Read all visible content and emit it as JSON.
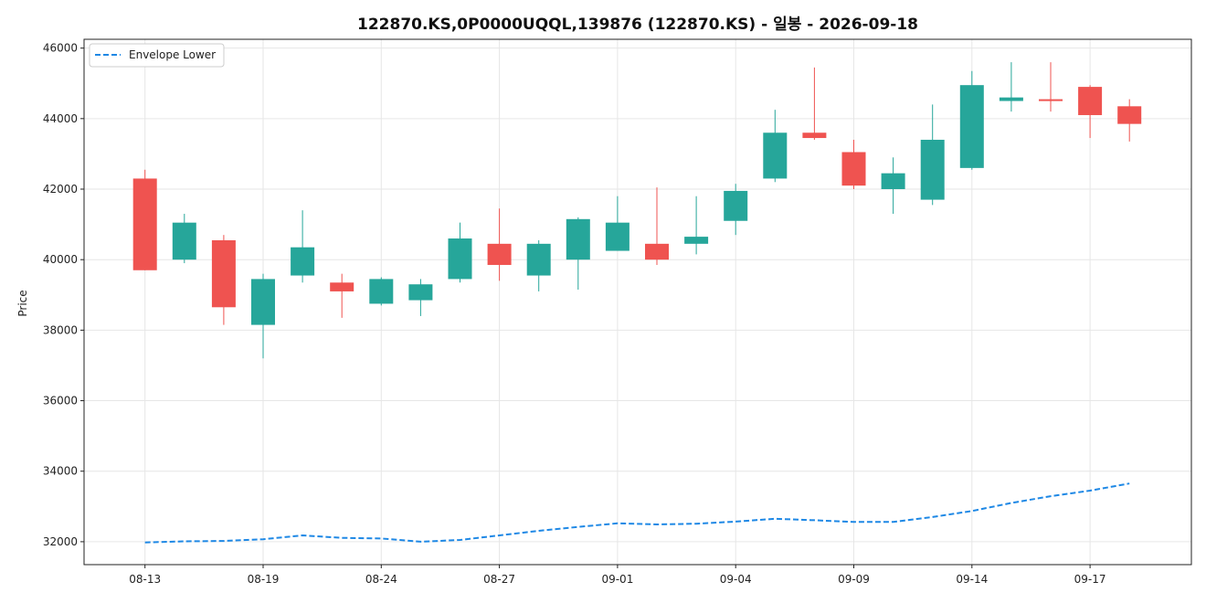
{
  "chart_data": {
    "type": "candlestick",
    "title": "122870.KS,0P0000UQQL,139876 (122870.KS) - 일봉 - 2026-09-18",
    "ylabel": "Price",
    "xlabel": "",
    "ylim": [
      31350,
      46250
    ],
    "yticks": [
      32000,
      34000,
      36000,
      38000,
      40000,
      42000,
      44000,
      46000
    ],
    "xtick_labels": [
      {
        "index": 0,
        "label": "08-13"
      },
      {
        "index": 3,
        "label": "08-19"
      },
      {
        "index": 6,
        "label": "08-24"
      },
      {
        "index": 9,
        "label": "08-27"
      },
      {
        "index": 12,
        "label": "09-01"
      },
      {
        "index": 15,
        "label": "09-04"
      },
      {
        "index": 18,
        "label": "09-09"
      },
      {
        "index": 21,
        "label": "09-14"
      },
      {
        "index": 24,
        "label": "09-17"
      }
    ],
    "grid": true,
    "legend": {
      "position": "top-left",
      "entries": [
        "Envelope Lower"
      ]
    },
    "colors": {
      "up": "#26a69a",
      "down": "#ef5350",
      "envelope": "#1e88e5"
    },
    "candles": [
      {
        "open": 42300,
        "high": 42550,
        "low": 39700,
        "close": 39700
      },
      {
        "open": 40000,
        "high": 41300,
        "low": 39900,
        "close": 41050
      },
      {
        "open": 40550,
        "high": 40700,
        "low": 38150,
        "close": 38650
      },
      {
        "open": 38150,
        "high": 39600,
        "low": 37200,
        "close": 39450
      },
      {
        "open": 39550,
        "high": 41400,
        "low": 39350,
        "close": 40350
      },
      {
        "open": 39350,
        "high": 39600,
        "low": 38350,
        "close": 39100
      },
      {
        "open": 38750,
        "high": 39500,
        "low": 38700,
        "close": 39450
      },
      {
        "open": 38850,
        "high": 39450,
        "low": 38400,
        "close": 39300
      },
      {
        "open": 39450,
        "high": 41050,
        "low": 39350,
        "close": 40600
      },
      {
        "open": 40450,
        "high": 41450,
        "low": 39400,
        "close": 39850
      },
      {
        "open": 39550,
        "high": 40550,
        "low": 39100,
        "close": 40450
      },
      {
        "open": 40000,
        "high": 41200,
        "low": 39150,
        "close": 41150
      },
      {
        "open": 40250,
        "high": 41800,
        "low": 40250,
        "close": 41050
      },
      {
        "open": 40450,
        "high": 42050,
        "low": 39850,
        "close": 40000
      },
      {
        "open": 40450,
        "high": 41800,
        "low": 40150,
        "close": 40650
      },
      {
        "open": 41100,
        "high": 42150,
        "low": 40700,
        "close": 41950
      },
      {
        "open": 42300,
        "high": 44250,
        "low": 42200,
        "close": 43600
      },
      {
        "open": 43600,
        "high": 45450,
        "low": 43400,
        "close": 43450
      },
      {
        "open": 43050,
        "high": 43400,
        "low": 42000,
        "close": 42100
      },
      {
        "open": 42000,
        "high": 42900,
        "low": 41300,
        "close": 42450
      },
      {
        "open": 41700,
        "high": 44400,
        "low": 41550,
        "close": 43400
      },
      {
        "open": 42600,
        "high": 45350,
        "low": 42550,
        "close": 44950
      },
      {
        "open": 44500,
        "high": 45600,
        "low": 44200,
        "close": 44600
      },
      {
        "open": 44550,
        "high": 45600,
        "low": 44200,
        "close": 44500
      },
      {
        "open": 44900,
        "high": 44950,
        "low": 43450,
        "close": 44100
      },
      {
        "open": 44350,
        "high": 44550,
        "low": 43350,
        "close": 43850
      }
    ],
    "series": [
      {
        "name": "Envelope Lower",
        "style": "dashed",
        "values": [
          31980,
          32010,
          32020,
          32070,
          32180,
          32110,
          32090,
          32000,
          32050,
          32180,
          32310,
          32420,
          32520,
          32490,
          32510,
          32570,
          32650,
          32610,
          32560,
          32560,
          32700,
          32870,
          33100,
          33290,
          33450,
          33650
        ]
      }
    ]
  }
}
